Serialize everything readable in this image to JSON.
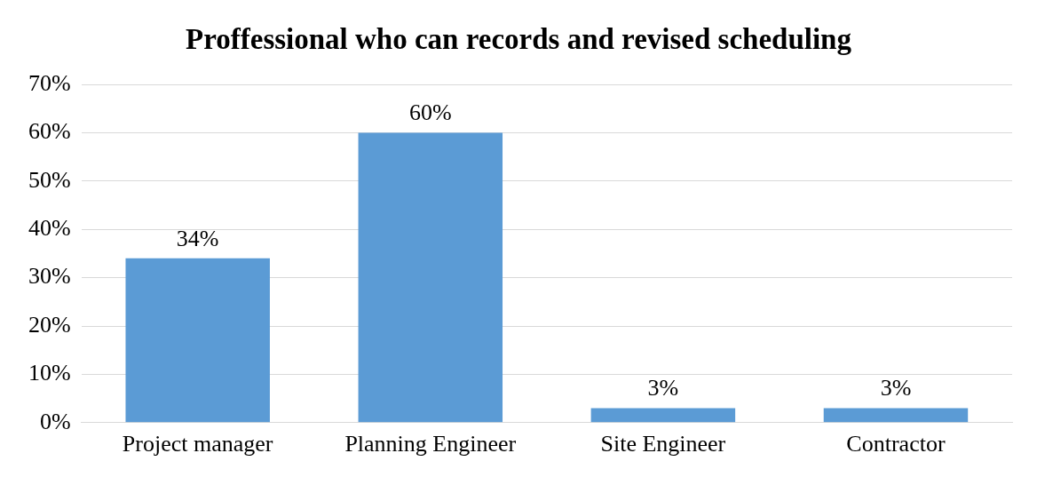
{
  "chart_data": {
    "type": "bar",
    "title": "Proffessional who can records and revised scheduling",
    "categories": [
      "Project manager",
      "Planning Engineer",
      "Site Engineer",
      "Contractor"
    ],
    "values": [
      34,
      60,
      3,
      3
    ],
    "color": "#5b9bd5",
    "value_labels": [
      "34%",
      "60%",
      "3%",
      "3%"
    ],
    "ylim": [
      0,
      70
    ],
    "yticks": [
      {
        "value": 0,
        "label": "0%"
      },
      {
        "value": 10,
        "label": "10%"
      },
      {
        "value": 20,
        "label": "20%"
      },
      {
        "value": 30,
        "label": "30%"
      },
      {
        "value": 40,
        "label": "40%"
      },
      {
        "value": 50,
        "label": "50%"
      },
      {
        "value": 60,
        "label": "60%"
      },
      {
        "value": 70,
        "label": "70%"
      }
    ],
    "grid": "y",
    "legend": false
  }
}
